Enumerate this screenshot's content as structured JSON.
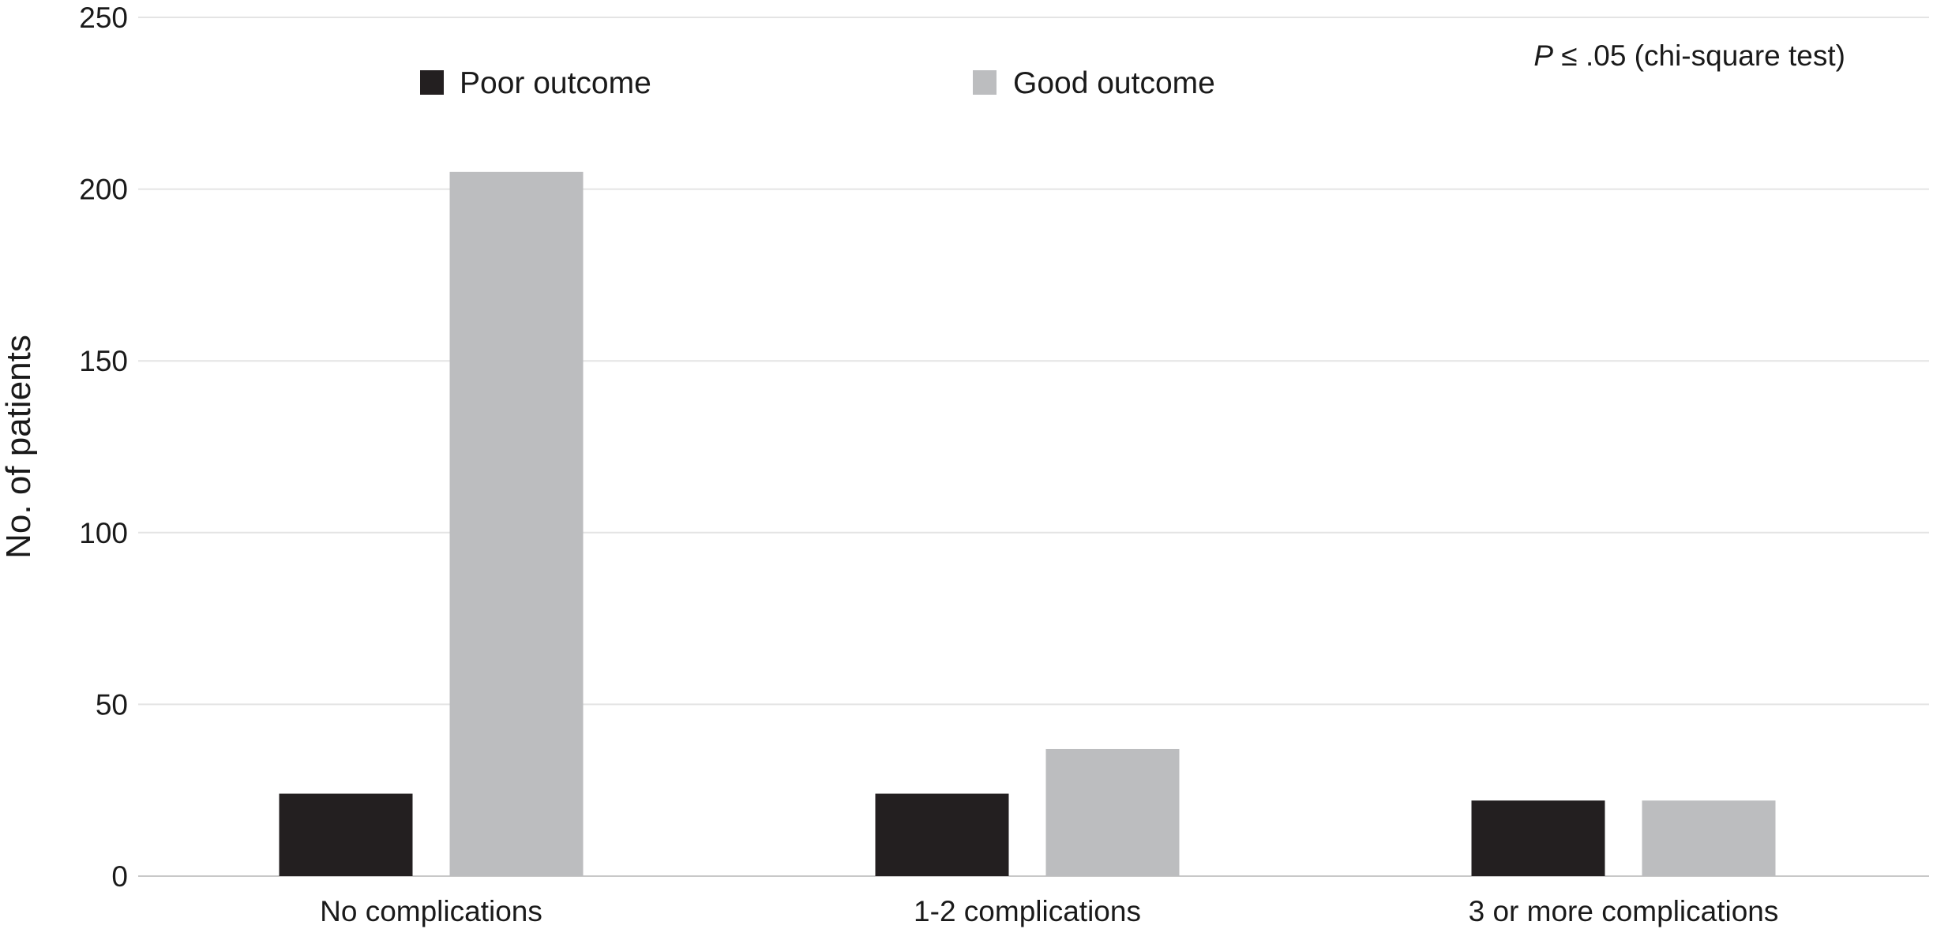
{
  "chart_data": {
    "type": "bar",
    "title": "",
    "xlabel": "",
    "ylabel": "No. of patients",
    "ylim": [
      0,
      250
    ],
    "yticks": [
      0,
      50,
      100,
      150,
      200,
      250
    ],
    "grid": true,
    "legend_position": "top",
    "categories": [
      "No complications",
      "1-2 complications",
      "3 or more complications"
    ],
    "series": [
      {
        "name": "Poor outcome",
        "color": "#231f20",
        "values": [
          24,
          24,
          22
        ]
      },
      {
        "name": "Good outcome",
        "color": "#bcbdbf",
        "values": [
          205,
          37,
          22
        ]
      }
    ],
    "annotation": {
      "italic": "P",
      "text": " ≤ .05 (chi-square test)"
    }
  }
}
